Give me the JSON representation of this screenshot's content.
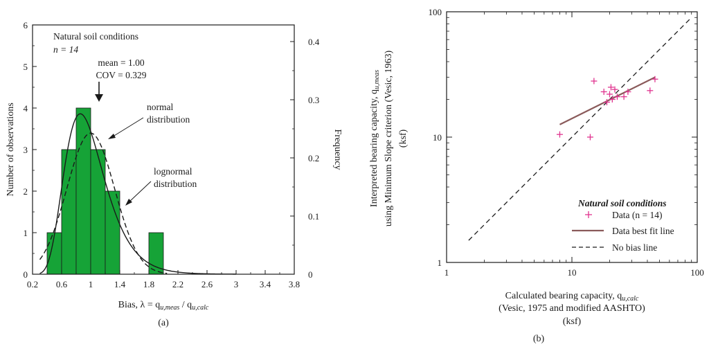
{
  "panel_a": {
    "ylabel_left": "Number of observations",
    "ylabel_right": "Frequency",
    "xlabel": "Bias, λ = q",
    "xlabel_sub1": "u,meas",
    "xlabel_mid": " / q",
    "xlabel_sub2": "u,calc",
    "caption": "(a)",
    "ann_title": "Natural soil conditions",
    "ann_n": "n = 14",
    "ann_mean": "mean = 1.00",
    "ann_cov": "COV = 0.329",
    "ann_normal_1": "normal",
    "ann_normal_2": "distribution",
    "ann_lognormal_1": "lognormal",
    "ann_lognormal_2": "distribution"
  },
  "panel_b": {
    "ylabel_1": "Interpreted bearing capacity, q",
    "ylabel_1_sub": "u,meas",
    "ylabel_2": "using Minimum Slope criterion (Vesic, 1963)",
    "ylabel_3": "(ksf)",
    "xlabel_1": "Calculated bearing capacity, q",
    "xlabel_1_sub": "u,calc",
    "xlabel_2": "(Vesic, 1975 and modified AASHTO)",
    "xlabel_3": "(ksf)",
    "caption": "(b)",
    "legend_title": "Natural soil conditions",
    "legend_data": "Data (n = 14)",
    "legend_fit": "Data best fit line",
    "legend_nobias": "No bias line"
  },
  "colors": {
    "bar_fill": "#16a337",
    "marker": "#e0338f",
    "fit_line": "#8a5a5a",
    "axis": "#1a1a1a"
  },
  "chart_data": [
    {
      "type": "bar",
      "bin_edges": [
        0.4,
        0.6,
        0.8,
        1.0,
        1.2,
        1.4,
        1.6,
        1.8,
        2.0
      ],
      "values": [
        1,
        3,
        4,
        3,
        2,
        0,
        0,
        1
      ],
      "xlim": [
        0.2,
        3.8
      ],
      "ylim": [
        0,
        6
      ],
      "y2lim": [
        0,
        0.4286
      ],
      "xticks": [
        "0.2",
        "0.6",
        "1",
        "1.4",
        "1.8",
        "2.2",
        "2.6",
        "3",
        "3.4",
        "3.8"
      ],
      "yticks": [
        "0",
        "1",
        "2",
        "3",
        "4",
        "5",
        "6"
      ],
      "y2ticks": [
        "0",
        "0.1",
        "0.2",
        "0.3",
        "0.4"
      ],
      "series": [
        {
          "name": "normal distribution",
          "kind": "curve",
          "mean": 1.0,
          "cov": 0.329
        },
        {
          "name": "lognormal distribution",
          "kind": "curve",
          "mean": 1.0,
          "cov": 0.329
        }
      ],
      "n": 14
    },
    {
      "type": "scatter",
      "xscale": "log",
      "yscale": "log",
      "xlim": [
        1,
        100
      ],
      "ylim": [
        1,
        100
      ],
      "xticks": [
        "1",
        "10",
        "100"
      ],
      "yticks": [
        "1",
        "10",
        "100"
      ],
      "legend": "bottom-right",
      "series": [
        {
          "name": "Data (n = 14)",
          "kind": "points",
          "points": [
            [
              8,
              10.5
            ],
            [
              14,
              10
            ],
            [
              15,
              28
            ],
            [
              18,
              23
            ],
            [
              19,
              19
            ],
            [
              20,
              22
            ],
            [
              20.5,
              25
            ],
            [
              21,
              20
            ],
            [
              22,
              24
            ],
            [
              23,
              21
            ],
            [
              26,
              21
            ],
            [
              28,
              23
            ],
            [
              42,
              23.5
            ],
            [
              46,
              29
            ]
          ]
        },
        {
          "name": "Data best fit line",
          "kind": "line",
          "points": [
            [
              8,
              12.6
            ],
            [
              46,
              30
            ]
          ]
        },
        {
          "name": "No bias line",
          "kind": "line",
          "dash": true,
          "points": [
            [
              1.5,
              1.5
            ],
            [
              90,
              90
            ]
          ]
        }
      ]
    }
  ]
}
